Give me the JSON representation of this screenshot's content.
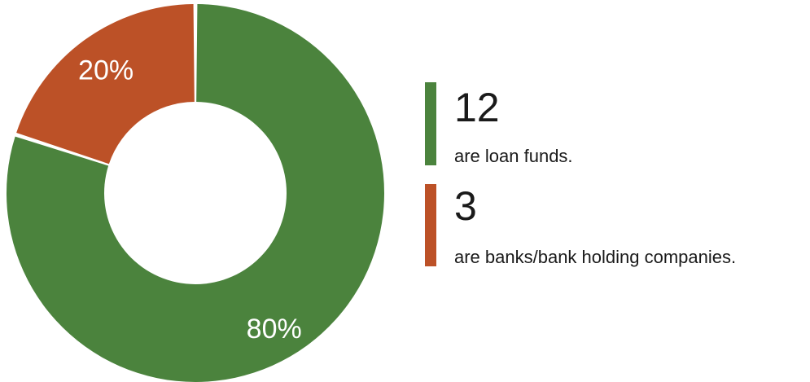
{
  "chart_data": {
    "type": "pie",
    "variant": "donut",
    "categories": [
      "loan funds",
      "banks/bank holding companies"
    ],
    "values": [
      80,
      20
    ],
    "slice_labels": [
      "80%",
      "20%"
    ],
    "colors": [
      "#4b833d",
      "#bc5127"
    ],
    "legend": [
      {
        "count": "12",
        "description": "are loan funds."
      },
      {
        "count": "3",
        "description": "are banks/bank holding companies."
      }
    ]
  }
}
